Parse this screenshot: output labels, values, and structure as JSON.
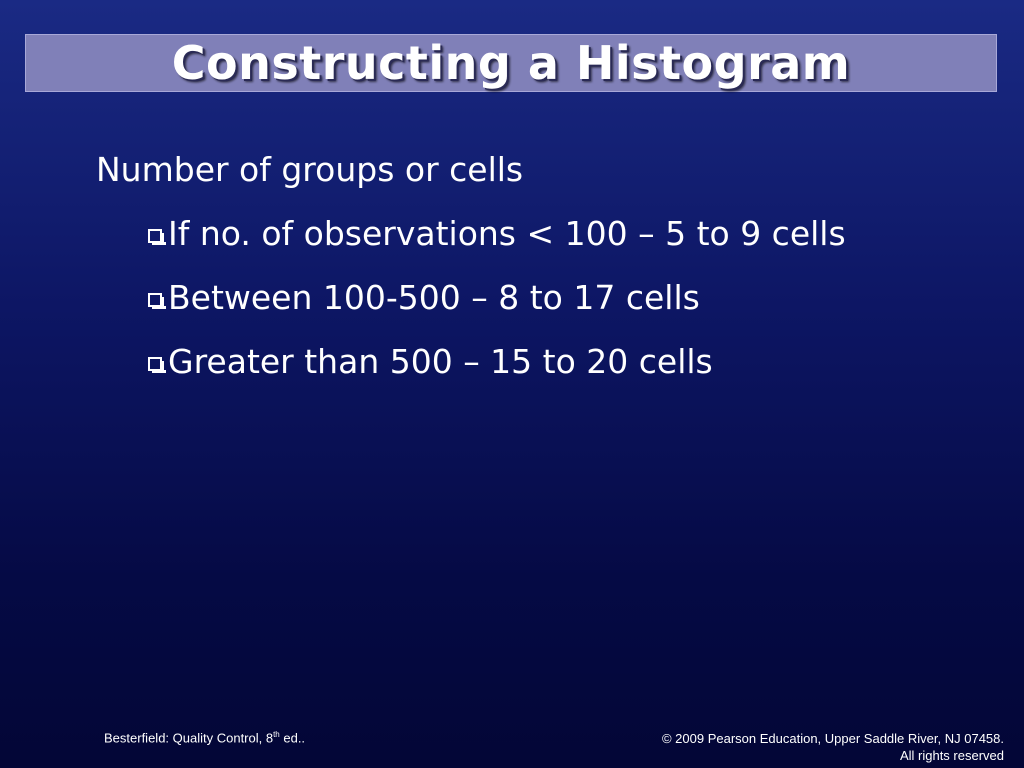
{
  "slide": {
    "title": "Constructing a Histogram",
    "lead": "Number of groups or cells",
    "bullets": [
      "If no. of observations < 100 – 5 to 9 cells",
      "Between 100-500 – 8 to 17 cells",
      "Greater than 500 – 15 to 20 cells"
    ]
  },
  "footer": {
    "left_text": "Besterfield: Quality Control, 8",
    "left_sup": "th",
    "left_suffix": " ed..",
    "right_line1": "© 2009 Pearson Education, Upper Saddle River, NJ 07458.",
    "right_line2": "All rights reserved"
  },
  "colors": {
    "background_top": "#1a2a84",
    "background_bottom": "#030636",
    "title_bar": "#8080b8",
    "text": "#ffffff"
  },
  "icons": {
    "bullet": "checkbox-square-icon"
  }
}
